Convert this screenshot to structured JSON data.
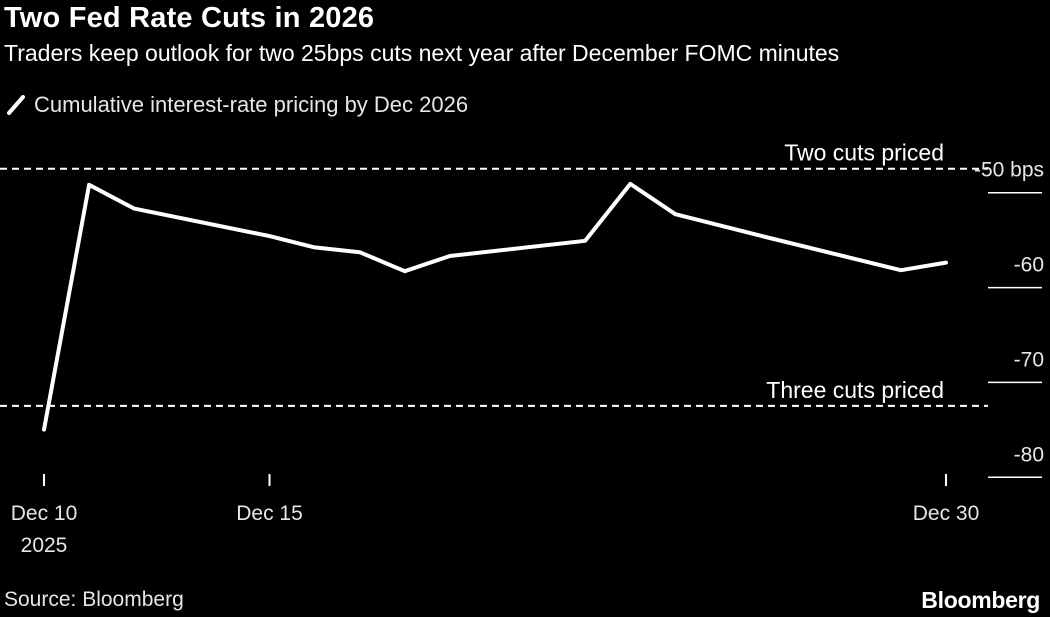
{
  "title": "Two Fed Rate Cuts in 2026",
  "subtitle": "Traders keep outlook for two 25bps cuts next year after December FOMC minutes",
  "legend": {
    "label": "Cumulative interest-rate pricing by Dec 2026",
    "icon": "line-swatch-icon"
  },
  "source": "Source: Bloomberg",
  "brand": "Bloomberg",
  "colors": {
    "background": "#000000",
    "line": "#ffffff",
    "text": "#ffffff",
    "muted_text": "#e6e6e6"
  },
  "chart_data": {
    "type": "line",
    "title": "",
    "xlabel": "",
    "ylabel": "bps",
    "x_type": "date",
    "series": [
      {
        "name": "Cumulative interest-rate pricing by Dec 2026",
        "color": "#ffffff",
        "points": [
          {
            "x": "2025-12-10",
            "y": -77.5
          },
          {
            "x": "2025-12-11",
            "y": -51.7
          },
          {
            "x": "2025-12-12",
            "y": -54.2
          },
          {
            "x": "2025-12-15",
            "y": -57.1
          },
          {
            "x": "2025-12-16",
            "y": -58.3
          },
          {
            "x": "2025-12-17",
            "y": -58.8
          },
          {
            "x": "2025-12-18",
            "y": -60.8
          },
          {
            "x": "2025-12-19",
            "y": -59.2
          },
          {
            "x": "2025-12-22",
            "y": -57.6
          },
          {
            "x": "2025-12-23",
            "y": -51.6
          },
          {
            "x": "2025-12-24",
            "y": -54.8
          },
          {
            "x": "2025-12-26",
            "y": -57.2
          },
          {
            "x": "2025-12-29",
            "y": -60.7
          },
          {
            "x": "2025-12-30",
            "y": -59.9
          }
        ]
      }
    ],
    "x_ticks": [
      {
        "x": "2025-12-10",
        "label": "Dec 10",
        "sublabel": "2025"
      },
      {
        "x": "2025-12-15",
        "label": "Dec 15",
        "sublabel": ""
      },
      {
        "x": "2025-12-30",
        "label": "Dec 30",
        "sublabel": ""
      }
    ],
    "y_ticks": [
      {
        "value": -50,
        "label": "-50",
        "unit": "bps"
      },
      {
        "value": -60,
        "label": "-60",
        "unit": ""
      },
      {
        "value": -70,
        "label": "-70",
        "unit": ""
      },
      {
        "value": -80,
        "label": "-80",
        "unit": ""
      }
    ],
    "ylim": [
      -82.5,
      -47.5
    ],
    "reference_lines": [
      {
        "value": -50,
        "label": "Two cuts priced",
        "style": "dashed"
      },
      {
        "value": -75,
        "label": "Three cuts priced",
        "style": "dashed"
      }
    ],
    "grid": false,
    "y_axis_side": "right",
    "legend_position": "top-left"
  }
}
